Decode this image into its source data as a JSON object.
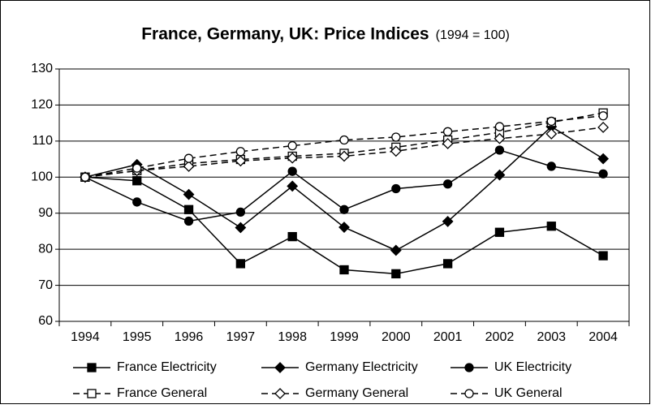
{
  "chart_data": {
    "type": "line",
    "title": "France, Germany, UK: Price Indices",
    "subtitle": "(1994 = 100)",
    "categories": [
      "1994",
      "1995",
      "1996",
      "1997",
      "1998",
      "1999",
      "2000",
      "2001",
      "2002",
      "2003",
      "2004"
    ],
    "ylim": [
      60,
      130
    ],
    "yticks": [
      60,
      70,
      80,
      90,
      100,
      110,
      120,
      130
    ],
    "grid": true,
    "legend": "bottom",
    "series": [
      {
        "name": "France Electricity",
        "color": "#000000",
        "marker": "square",
        "filled": true,
        "dashed": false,
        "values": [
          100,
          99,
          91,
          76,
          83.5,
          74.3,
          73.2,
          76,
          84.7,
          86.4,
          78.2
        ]
      },
      {
        "name": "Germany Electricity",
        "color": "#000000",
        "marker": "diamond",
        "filled": true,
        "dashed": false,
        "values": [
          100,
          103.5,
          95.2,
          86,
          97.5,
          86.1,
          79.7,
          87.7,
          100.6,
          114,
          105.1
        ]
      },
      {
        "name": "UK Electricity",
        "color": "#000000",
        "marker": "circle",
        "filled": true,
        "dashed": false,
        "values": [
          100,
          93.1,
          87.8,
          90.3,
          101.6,
          91,
          96.8,
          98.1,
          107.5,
          103,
          100.9
        ]
      },
      {
        "name": "France General",
        "color": "#000000",
        "marker": "square",
        "filled": false,
        "dashed": true,
        "values": [
          100,
          101.8,
          103.8,
          104.9,
          105.8,
          106.6,
          108.3,
          110.3,
          112.4,
          115.2,
          117.8
        ]
      },
      {
        "name": "Germany General",
        "color": "#000000",
        "marker": "diamond",
        "filled": false,
        "dashed": true,
        "values": [
          100,
          101.8,
          103,
          104.5,
          105.3,
          105.8,
          107.2,
          109.3,
          110.7,
          112,
          113.8
        ]
      },
      {
        "name": "UK General",
        "color": "#000000",
        "marker": "circle",
        "filled": false,
        "dashed": true,
        "values": [
          100,
          102.5,
          105.2,
          107.1,
          108.7,
          110.3,
          111.1,
          112.6,
          114,
          115.5,
          117
        ]
      }
    ]
  }
}
